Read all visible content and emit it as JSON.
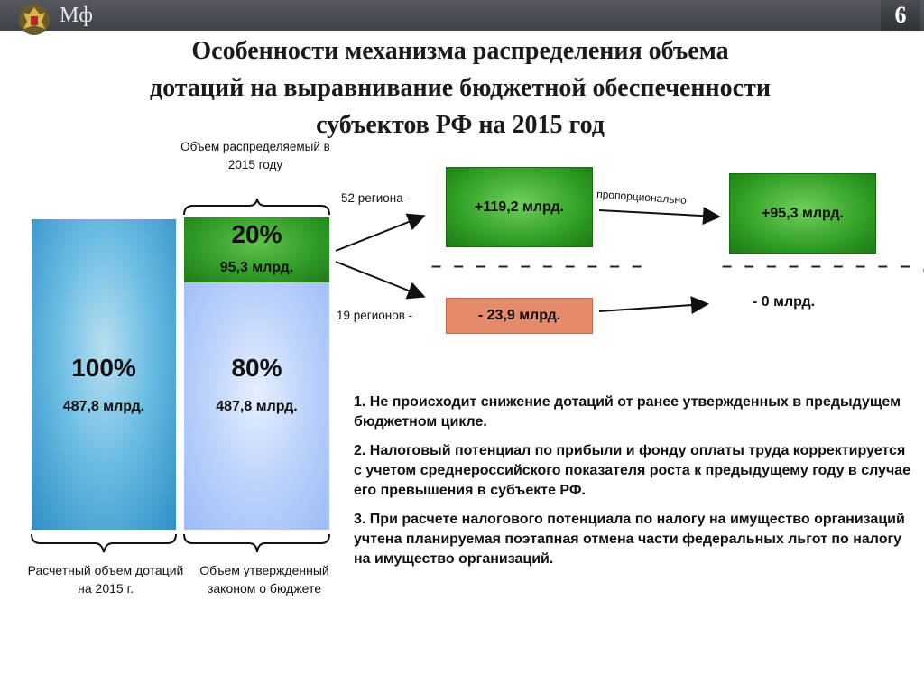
{
  "header": {
    "logo_text": "Мф",
    "slide_number": "6"
  },
  "title": {
    "line1": "Особенности механизма распределения объема",
    "line2": "дотаций на выравнивание бюджетной обеспеченности",
    "line3": "субъектов РФ на 2015 год"
  },
  "colors": {
    "green": "#2e9c22",
    "blue_bar": "#4aa8da",
    "light_blue_bar": "#bcd2fb",
    "orange_box": "#e58a6a"
  },
  "left_column": {
    "above_label": "Объем распределяемый в 2015 году",
    "bar1_pct": "100%",
    "bar1_amount": "487,8 млрд.",
    "bar2_top_pct": "20%",
    "bar2_top_amount": "95,3 млрд.",
    "bar2_bottom_pct": "80%",
    "bar2_bottom_amount": "487,8 млрд.",
    "caption1": "Расчетный объем дотаций на 2015 г.",
    "caption2": "Объем утвержденный законом о бюджете"
  },
  "flow": {
    "regions_top": "52 региона -",
    "regions_bottom": "19 регионов -",
    "box_top": "+119,2 млрд.",
    "box_bottom": "- 23,9 млрд.",
    "proportional": "пропорционально",
    "result_top": "+95,3 млрд.",
    "result_bottom": "- 0 млрд.",
    "dashes_left": "– – – – – – – – – –",
    "dashes_right": "– – – – – – – – – ."
  },
  "notes": [
    "1. Не происходит снижение дотаций от ранее утвержденных в предыдущем бюджетном цикле.",
    "2. Налоговый потенциал по прибыли и фонду оплаты труда корректируется с учетом среднероссийского показателя роста к предыдущему году в случае его превышения в субъекте РФ.",
    "3. При расчете налогового потенциала по налогу на имущество организаций учтена планируемая поэтапная отмена части федеральных льгот по налогу на имущество организаций."
  ]
}
